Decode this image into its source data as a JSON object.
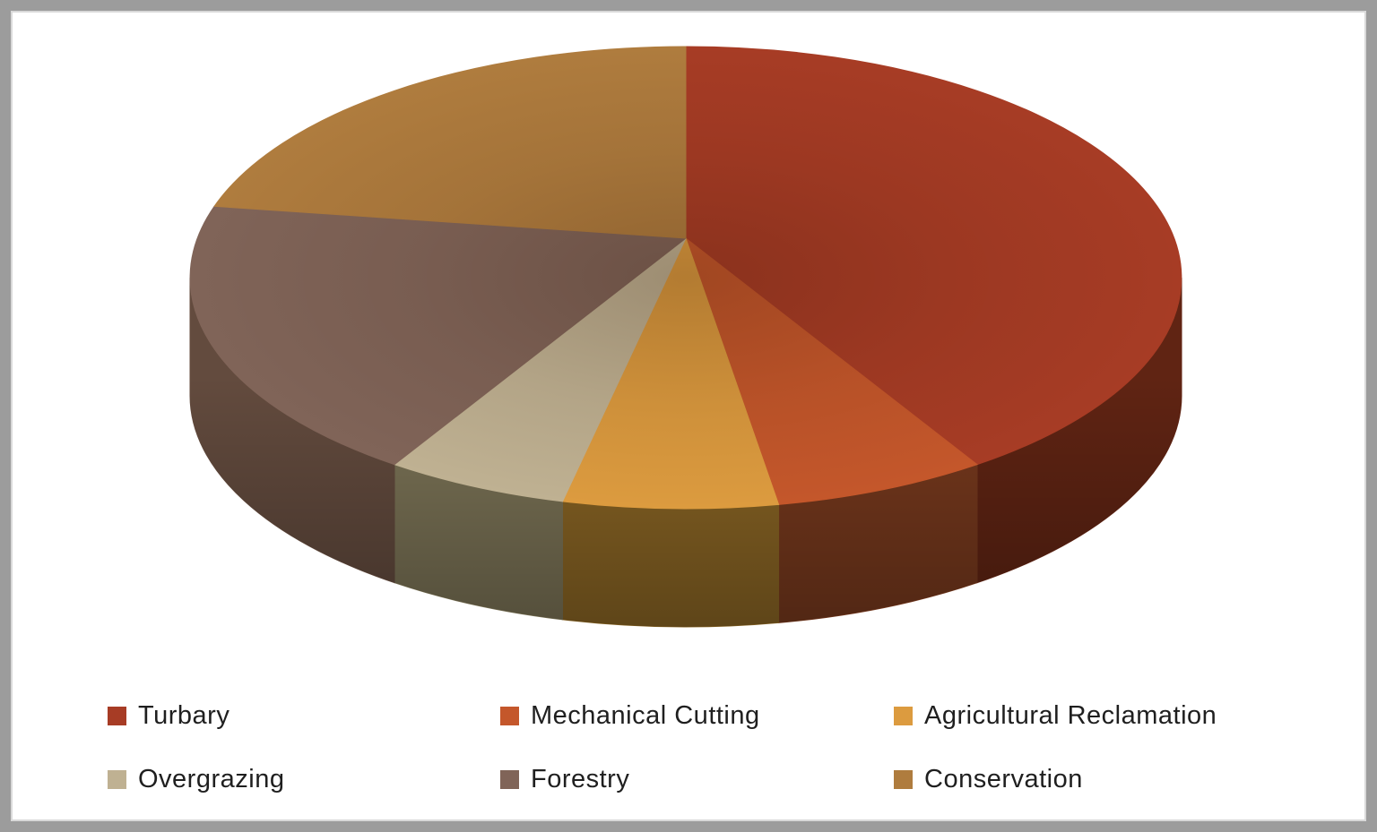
{
  "chart_data": {
    "type": "pie",
    "style": "3d",
    "title": "",
    "categories": [
      "Turbary",
      "Mechanical Cutting",
      "Agricultural Reclamation",
      "Overgrazing",
      "Forestry",
      "Conservation"
    ],
    "values": [
      40,
      7,
      7,
      6,
      20,
      20
    ],
    "unit": "percent-share",
    "colors": [
      "#A73C25",
      "#C4572B",
      "#DC9B3F",
      "#BFB192",
      "#806458",
      "#AF7C3E"
    ],
    "side_colors": [
      "#602413",
      "#77391D",
      "#8A6524",
      "#7B7356",
      "#634B3E",
      "#8F6A32"
    ],
    "start_angle_deg": 0,
    "direction": "clockwise",
    "legend_position": "bottom",
    "data_labels": "none",
    "frame_color": "#9C9C9C",
    "background_color": "#FFFFFF",
    "legend_text_color": "#1F1F1F"
  }
}
